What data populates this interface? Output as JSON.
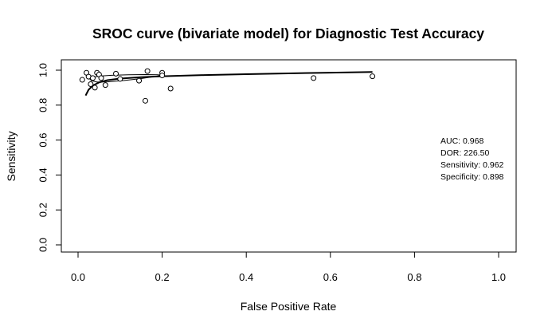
{
  "chart_data": {
    "type": "scatter",
    "title": "SROC curve (bivariate model) for Diagnostic Test Accuracy",
    "xlabel": "False Positive Rate",
    "ylabel": "Sensitivity",
    "xlim": [
      0,
      1
    ],
    "ylim": [
      0,
      1
    ],
    "x_ticks": [
      "0.0",
      "0.2",
      "0.4",
      "0.6",
      "0.8",
      "1.0"
    ],
    "y_ticks": [
      "0.0",
      "0.2",
      "0.4",
      "0.6",
      "0.8",
      "1.0"
    ],
    "grid": false,
    "points": [
      {
        "x": 0.01,
        "y": 0.945
      },
      {
        "x": 0.02,
        "y": 0.985
      },
      {
        "x": 0.025,
        "y": 0.963
      },
      {
        "x": 0.03,
        "y": 0.92
      },
      {
        "x": 0.035,
        "y": 0.955
      },
      {
        "x": 0.04,
        "y": 0.9
      },
      {
        "x": 0.045,
        "y": 0.985
      },
      {
        "x": 0.05,
        "y": 0.975
      },
      {
        "x": 0.055,
        "y": 0.955
      },
      {
        "x": 0.065,
        "y": 0.915
      },
      {
        "x": 0.09,
        "y": 0.98
      },
      {
        "x": 0.1,
        "y": 0.95
      },
      {
        "x": 0.145,
        "y": 0.94
      },
      {
        "x": 0.165,
        "y": 0.995
      },
      {
        "x": 0.16,
        "y": 0.825
      },
      {
        "x": 0.2,
        "y": 0.985
      },
      {
        "x": 0.2,
        "y": 0.97
      },
      {
        "x": 0.22,
        "y": 0.895
      },
      {
        "x": 0.56,
        "y": 0.955
      },
      {
        "x": 0.7,
        "y": 0.965
      }
    ],
    "sroc_curve": [
      [
        0.018,
        0.855
      ],
      [
        0.025,
        0.888
      ],
      [
        0.035,
        0.912
      ],
      [
        0.05,
        0.93
      ],
      [
        0.07,
        0.943
      ],
      [
        0.1,
        0.952
      ],
      [
        0.15,
        0.96
      ],
      [
        0.2,
        0.965
      ],
      [
        0.3,
        0.972
      ],
      [
        0.4,
        0.977
      ],
      [
        0.5,
        0.982
      ],
      [
        0.6,
        0.986
      ],
      [
        0.7,
        0.99
      ]
    ],
    "confidence_region": [
      [
        0.03,
        0.958
      ],
      [
        0.05,
        0.966
      ],
      [
        0.08,
        0.971
      ],
      [
        0.12,
        0.974
      ],
      [
        0.16,
        0.975
      ],
      [
        0.19,
        0.974
      ],
      [
        0.2,
        0.971
      ],
      [
        0.18,
        0.963
      ],
      [
        0.15,
        0.952
      ],
      [
        0.11,
        0.941
      ],
      [
        0.07,
        0.933
      ],
      [
        0.045,
        0.932
      ],
      [
        0.032,
        0.94
      ],
      [
        0.028,
        0.95
      ],
      [
        0.03,
        0.958
      ]
    ],
    "annotations": [
      "AUC: 0.968",
      "DOR: 226.50",
      "Sensitivity: 0.962",
      "Specificity: 0.898"
    ]
  }
}
